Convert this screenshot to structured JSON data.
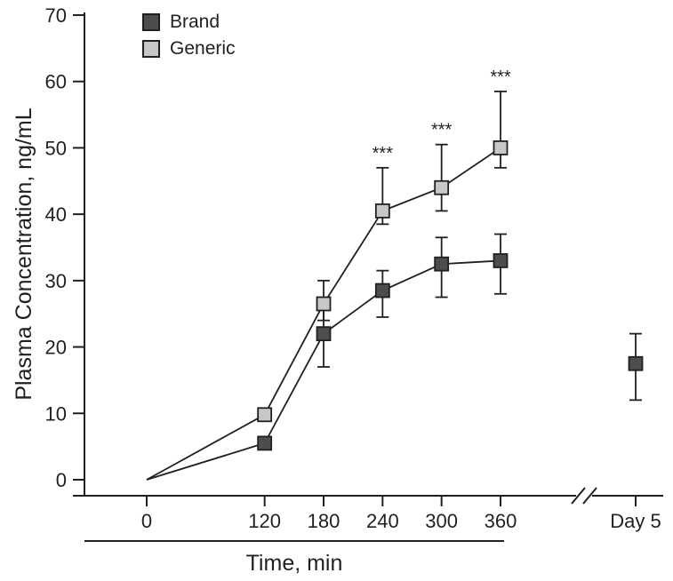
{
  "figure": {
    "ylabel": "Plasma Concentration, ng/mL",
    "xlabel": "Time, min"
  },
  "legend": {
    "items": [
      {
        "label": "Brand",
        "color": "#4d4d4d"
      },
      {
        "label": "Generic",
        "color": "#c7c7c7"
      }
    ]
  },
  "chart_data": {
    "type": "line",
    "title": "",
    "xlabel": "Time, min",
    "ylabel": "Plasma Concentration, ng/mL",
    "ylim": [
      0,
      70
    ],
    "yticks": [
      0,
      10,
      20,
      30,
      40,
      50,
      60,
      70
    ],
    "xticks": [
      0,
      120,
      180,
      240,
      300,
      360
    ],
    "x_axis_break": true,
    "grid": false,
    "legend_position": "top-left",
    "series": [
      {
        "name": "Brand",
        "color": "#4d4d4d",
        "x": [
          0,
          120,
          180,
          240,
          300,
          360
        ],
        "y": [
          0,
          5.5,
          22,
          28.5,
          32.5,
          33
        ],
        "yerr_low": [
          0,
          0,
          5,
          4,
          5,
          5
        ],
        "yerr_high": [
          0,
          0,
          4,
          3,
          4,
          4
        ],
        "sig": [
          "",
          "",
          "",
          "",
          "",
          ""
        ]
      },
      {
        "name": "Generic",
        "color": "#c7c7c7",
        "x": [
          0,
          120,
          180,
          240,
          300,
          360
        ],
        "y": [
          0,
          9.8,
          26.5,
          40.5,
          44,
          50
        ],
        "yerr_low": [
          0,
          0,
          2.5,
          2,
          3.5,
          3
        ],
        "yerr_high": [
          0,
          0,
          3.5,
          6.5,
          6.5,
          8.5
        ],
        "sig": [
          "",
          "",
          "",
          "***",
          "***",
          "***"
        ]
      }
    ],
    "day5": {
      "label": "Day 5",
      "series": "Brand",
      "y": 17.5,
      "yerr_low": 5.5,
      "yerr_high": 4.5
    }
  }
}
